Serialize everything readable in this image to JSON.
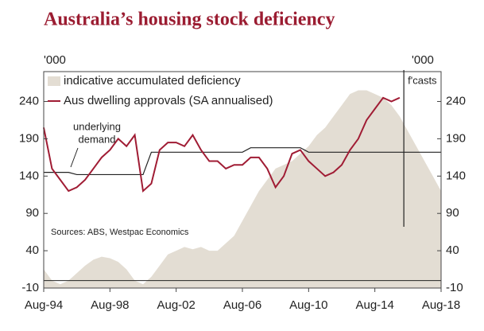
{
  "chart_data": {
    "type": "line",
    "title": "Australia’s housing stock deficiency",
    "y_unit": "'000",
    "y2_unit": "'000",
    "source": "Sources: ABS, Westpac Economics",
    "annotations": [
      "underlying",
      "demand",
      "f'casts"
    ],
    "x": [
      "Aug-94",
      null,
      null,
      null,
      null,
      null,
      null,
      null,
      "Aug-98",
      null,
      null,
      null,
      null,
      null,
      null,
      null,
      "Aug-02",
      null,
      null,
      null,
      null,
      null,
      null,
      null,
      "Aug-06",
      null,
      null,
      null,
      null,
      null,
      null,
      null,
      "Aug-10",
      null,
      null,
      null,
      null,
      null,
      null,
      null,
      "Aug-14",
      null,
      null,
      null,
      null,
      null,
      null,
      null,
      "Aug-18"
    ],
    "ylim": [
      -10,
      280
    ],
    "yticks": [
      -10,
      40,
      90,
      140,
      190,
      240
    ],
    "y2lim": [
      -10,
      280
    ],
    "y2ticks": [
      -10,
      40,
      90,
      140,
      190,
      240
    ],
    "series": [
      {
        "name": "indicative accumulated deficiency",
        "kind": "area",
        "color": "#e3ddd3",
        "values": [
          15,
          0,
          -5,
          0,
          10,
          20,
          28,
          32,
          30,
          25,
          15,
          0,
          -5,
          5,
          20,
          35,
          40,
          45,
          42,
          45,
          40,
          40,
          50,
          60,
          80,
          100,
          120,
          135,
          150,
          155,
          160,
          170,
          180,
          195,
          205,
          220,
          235,
          250,
          255,
          255,
          250,
          245,
          235,
          220,
          200,
          180,
          160,
          140,
          120
        ]
      },
      {
        "name": "Aus dwelling approvals (SA annualised)",
        "kind": "line",
        "color": "#a01c34",
        "values": [
          205,
          150,
          135,
          120,
          125,
          135,
          150,
          165,
          175,
          190,
          180,
          195,
          120,
          130,
          175,
          185,
          185,
          180,
          195,
          175,
          160,
          160,
          150,
          155,
          155,
          165,
          165,
          150,
          125,
          140,
          170,
          175,
          160,
          150,
          140,
          145,
          155,
          175,
          190,
          215,
          230,
          245,
          240,
          245,
          null,
          null,
          null,
          null,
          null
        ]
      },
      {
        "kind": "line",
        "color": "#222222",
        "values": [
          145,
          145,
          145,
          145,
          142,
          142,
          142,
          142,
          142,
          142,
          142,
          142,
          142,
          172,
          172,
          172,
          172,
          172,
          172,
          172,
          172,
          172,
          172,
          172,
          172,
          178,
          178,
          178,
          178,
          178,
          178,
          178,
          172,
          172,
          172,
          172,
          172,
          172,
          172,
          172,
          172,
          172,
          172,
          172,
          172,
          172,
          172,
          172,
          172
        ]
      }
    ]
  }
}
